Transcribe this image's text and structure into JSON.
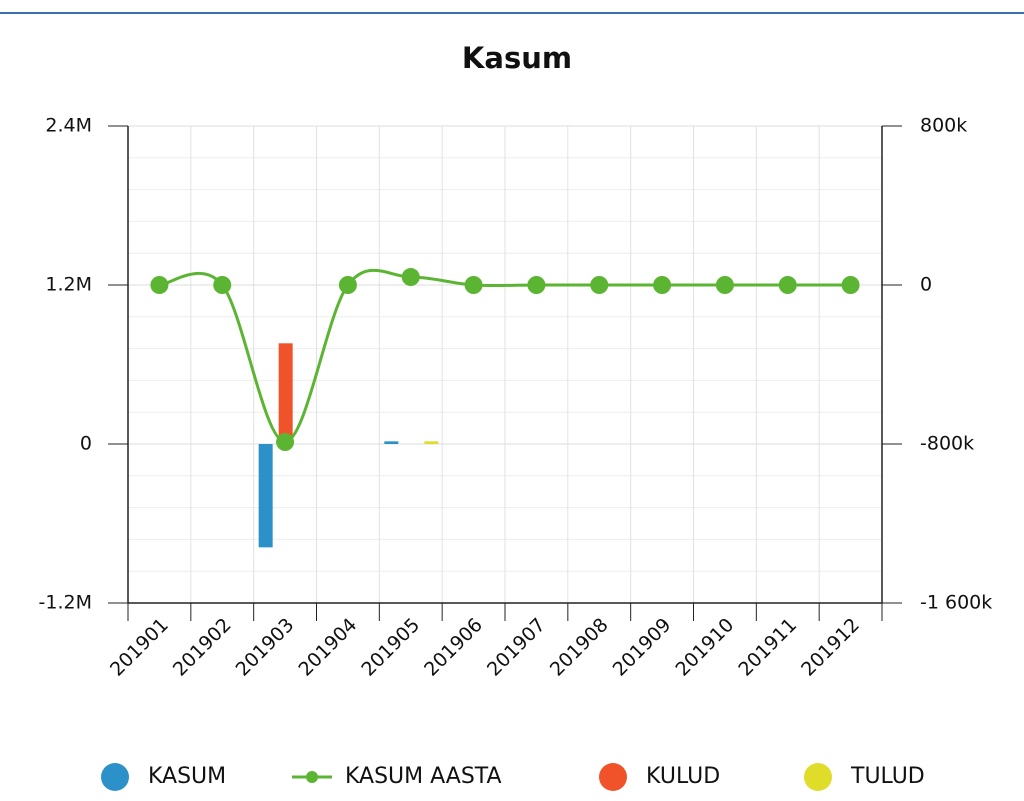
{
  "chart_data": {
    "type": "bar-line",
    "title": "Kasum",
    "categories": [
      "201901",
      "201902",
      "201903",
      "201904",
      "201905",
      "201906",
      "201907",
      "201908",
      "201909",
      "201910",
      "201911",
      "201912"
    ],
    "series": [
      {
        "name": "KASUM",
        "color": "#2b91c8",
        "type": "bar",
        "values": [
          0,
          0,
          -780000,
          0,
          20000,
          0,
          0,
          0,
          0,
          0,
          0,
          0
        ]
      },
      {
        "name": "KASUM AASTA",
        "color": "#5cb532",
        "type": "line",
        "axis": "y2",
        "values": [
          0,
          0,
          -790000,
          0,
          40000,
          0,
          0,
          0,
          0,
          0,
          0,
          0
        ]
      },
      {
        "name": "KULUD",
        "color": "#f0532a",
        "type": "bar",
        "values": [
          0,
          0,
          760000,
          0,
          0,
          0,
          0,
          0,
          0,
          0,
          0,
          0
        ]
      },
      {
        "name": "TULUD",
        "color": "#dfdc2a",
        "type": "bar",
        "values": [
          0,
          0,
          0,
          0,
          20000,
          0,
          0,
          0,
          0,
          0,
          0,
          0
        ]
      }
    ],
    "ylim": [
      -1200000,
      2400000
    ],
    "yticks": [
      {
        "value": -1200000,
        "label": "-1.2M"
      },
      0,
      {
        "value": 1200000,
        "label": "1.2M"
      },
      {
        "value": 2400000,
        "label": "2.4M"
      }
    ],
    "y2lim": [
      -1600000,
      800000
    ],
    "y2ticks": [
      {
        "value": -1600000,
        "label": "-1 600k"
      },
      {
        "value": -800000,
        "label": "-800k"
      },
      0,
      {
        "value": 800000,
        "label": "800k"
      }
    ],
    "grid": true,
    "legend": "bottom"
  }
}
